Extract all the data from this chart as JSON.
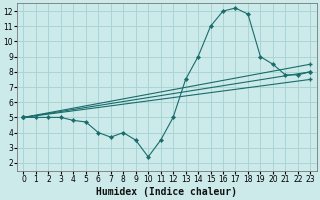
{
  "xlabel": "Humidex (Indice chaleur)",
  "bg_color": "#cceaea",
  "grid_color": "#aad4d4",
  "line_color": "#1a6b6b",
  "xlim": [
    -0.5,
    23.5
  ],
  "ylim": [
    1.5,
    12.5
  ],
  "xticks": [
    0,
    1,
    2,
    3,
    4,
    5,
    6,
    7,
    8,
    9,
    10,
    11,
    12,
    13,
    14,
    15,
    16,
    17,
    18,
    19,
    20,
    21,
    22,
    23
  ],
  "yticks": [
    2,
    3,
    4,
    5,
    6,
    7,
    8,
    9,
    10,
    11,
    12
  ],
  "series1_x": [
    0,
    1,
    2,
    3,
    4,
    5,
    6,
    7,
    8,
    9,
    10,
    11,
    12,
    13,
    14,
    15,
    16,
    17,
    18,
    19,
    20,
    21,
    22,
    23
  ],
  "series1_y": [
    5.0,
    5.0,
    5.0,
    5.0,
    4.8,
    4.7,
    4.0,
    3.7,
    4.0,
    3.5,
    2.4,
    3.5,
    5.0,
    7.5,
    9.0,
    11.0,
    12.0,
    12.2,
    11.8,
    9.0,
    8.5,
    7.8,
    7.8,
    8.0
  ],
  "series2_x": [
    0,
    23
  ],
  "series2_y": [
    5.0,
    8.5
  ],
  "series3_x": [
    0,
    23
  ],
  "series3_y": [
    5.0,
    8.0
  ],
  "series4_x": [
    0,
    23
  ],
  "series4_y": [
    5.0,
    7.5
  ],
  "xlabel_fontsize": 7,
  "tick_fontsize": 5.5
}
